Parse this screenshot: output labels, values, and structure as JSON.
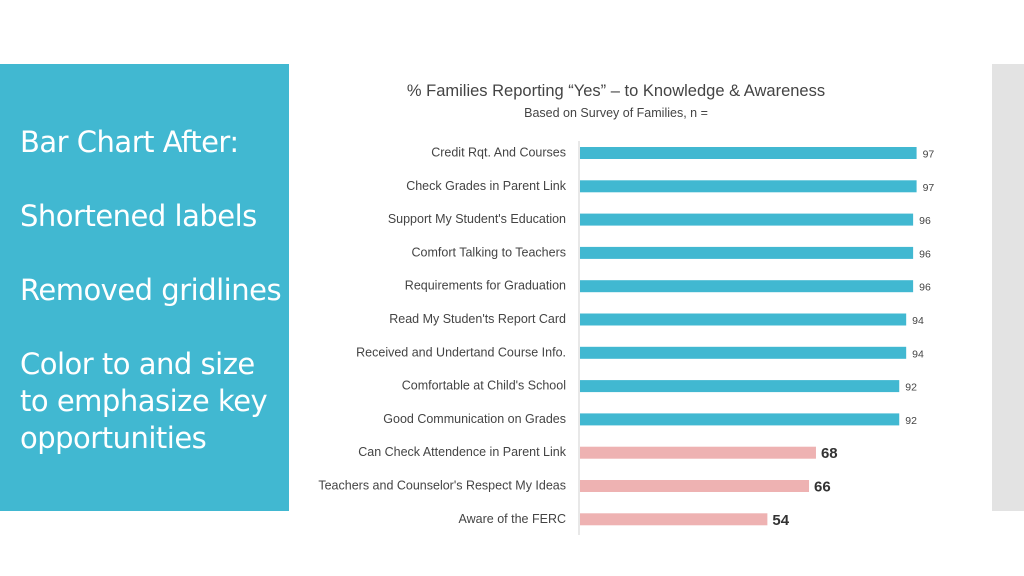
{
  "slide": {
    "lines": [
      "Bar Chart After:",
      "",
      "Shortened labels",
      "",
      "Removed gridlines",
      "",
      "Color to and size",
      "to emphasize key",
      "opportunities"
    ]
  },
  "colors": {
    "panel": "#41b8d1",
    "bar_high": "#41b8d1",
    "bar_low": "#eeb2b2",
    "band": "#e3e3e3"
  },
  "chart_data": {
    "type": "bar",
    "orientation": "horizontal",
    "title": "% Families Reporting “Yes” – to  Knowledge & Awareness",
    "subtitle": "Based on Survey of Families, n =",
    "categories": [
      "Credit Rqt. And Courses",
      "Check Grades in Parent Link",
      "Support My Student's Education",
      "Comfort Talking to Teachers",
      "Requirements for Graduation",
      "Read My Studen'ts Report Card",
      "Received and Undertand Course Info.",
      "Comfortable at Child's School",
      "Good Communication on Grades",
      "Can Check Attendence in Parent Link",
      "Teachers and Counselor's Respect My Ideas",
      "Aware of the FERC"
    ],
    "values": [
      97,
      97,
      96,
      96,
      96,
      94,
      94,
      92,
      92,
      68,
      66,
      54
    ],
    "emphasized": [
      false,
      false,
      false,
      false,
      false,
      false,
      false,
      false,
      false,
      true,
      true,
      true
    ],
    "xlim": [
      0,
      100
    ],
    "grid": false,
    "legend": "none"
  }
}
